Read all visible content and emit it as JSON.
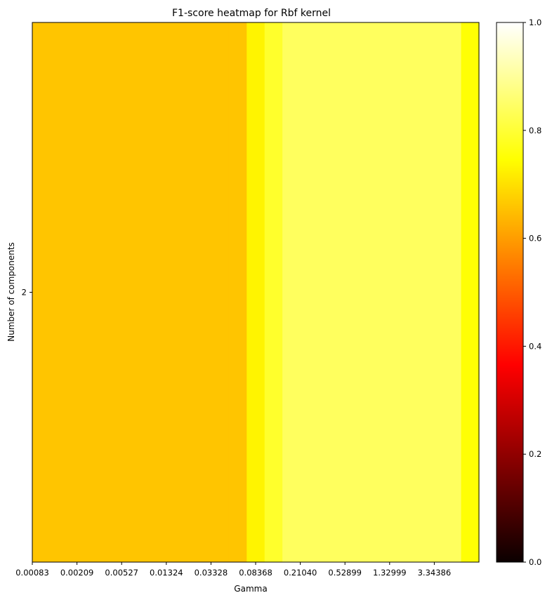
{
  "chart_data": {
    "type": "heatmap",
    "title": "F1-score heatmap for Rbf kernel",
    "xlabel": "Gamma",
    "ylabel": "Number of components",
    "colormap": "hot",
    "x_tick_labels": [
      "0.00083",
      "0.00209",
      "0.00527",
      "0.01324",
      "0.03328",
      "0.08368",
      "0.21040",
      "0.52899",
      "1.32999",
      "3.34386"
    ],
    "y_tick_labels": [
      "2"
    ],
    "y_values": [
      2
    ],
    "values": [
      [
        0.66,
        0.66,
        0.66,
        0.66,
        0.66,
        0.66,
        0.66,
        0.66,
        0.66,
        0.66,
        0.66,
        0.66,
        0.73,
        0.79,
        0.84,
        0.84,
        0.84,
        0.84,
        0.84,
        0.84,
        0.84,
        0.84,
        0.84,
        0.84,
        0.75
      ]
    ],
    "colorbar": {
      "range": [
        0.0,
        1.0
      ],
      "tick_labels": [
        "0.0",
        "0.2",
        "0.4",
        "0.6",
        "0.8",
        "1.0"
      ],
      "ticks": [
        0.0,
        0.2,
        0.4,
        0.6,
        0.8,
        1.0
      ]
    },
    "grid": false
  }
}
